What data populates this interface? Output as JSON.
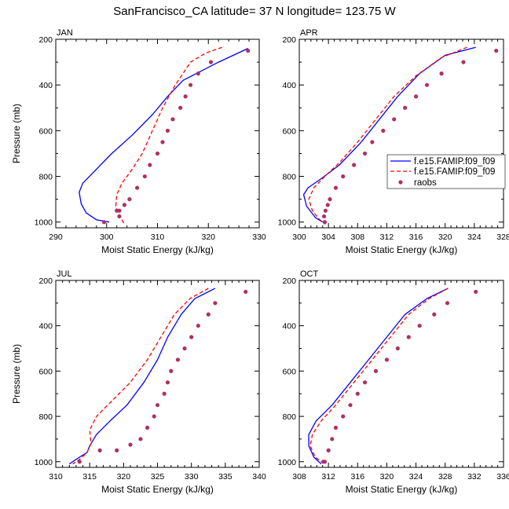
{
  "title": "SanFrancisco_CA  latitude= 37 N longitude= 123.75 W",
  "colors": {
    "blue": "#0000ff",
    "red": "#ff0000",
    "dots": "#b03060"
  },
  "legend": {
    "placement": "right of APR panel",
    "entries": [
      "f.e15.FAMIP.f09_f09",
      "f.e15.FAMIP.f09_f09",
      "raobs"
    ]
  },
  "chart_data": [
    {
      "type": "line",
      "month": "JAN",
      "xlabel": "Moist Static Energy (kJ/kg)",
      "ylabel": "Pressure (mb)",
      "xlim": [
        290,
        330
      ],
      "ylim": [
        200,
        1025
      ],
      "y_inverted": true,
      "xticks": [
        290,
        300,
        310,
        320,
        330
      ],
      "yticks": [
        200,
        400,
        600,
        800,
        1000
      ],
      "series": [
        {
          "name": "f.e15.FAMIP.f09_f09",
          "style": "solid-blue",
          "x": [
            327.8,
            322,
            315,
            312,
            309,
            305,
            301,
            297.5,
            295.3,
            294.6,
            295,
            296,
            298,
            300.5
          ],
          "y": [
            240,
            300,
            380,
            450,
            530,
            620,
            700,
            780,
            830,
            870,
            920,
            960,
            990,
            1000
          ]
        },
        {
          "name": "f.e15.FAMIP.f09_f09",
          "style": "dashed-red",
          "x": [
            322.7,
            319.5,
            316.5,
            313.5,
            311,
            309,
            307,
            305,
            303,
            302,
            301.8,
            302.2,
            303,
            303.5
          ],
          "y": [
            235,
            260,
            300,
            400,
            500,
            600,
            700,
            770,
            830,
            880,
            930,
            960,
            990,
            1010
          ]
        },
        {
          "name": "raobs",
          "style": "dots",
          "x": [
            327.8,
            320.5,
            318,
            316.5,
            315.5,
            314.5,
            313,
            312,
            311,
            310,
            308.5,
            307.5,
            306,
            304.5,
            303.5,
            302.5,
            302,
            302.5,
            299.5
          ],
          "y": [
            250,
            300,
            350,
            400,
            450,
            500,
            550,
            600,
            650,
            700,
            750,
            800,
            850,
            900,
            925,
            950,
            950,
            975,
            1000
          ]
        }
      ]
    },
    {
      "type": "line",
      "month": "APR",
      "xlabel": "Moist Static Energy (kJ/kg)",
      "ylabel": "",
      "xlim": [
        300,
        328
      ],
      "ylim": [
        200,
        1025
      ],
      "y_inverted": true,
      "xticks": [
        300,
        304,
        308,
        312,
        316,
        320,
        324,
        328
      ],
      "yticks": [
        200,
        400,
        600,
        800,
        1000
      ],
      "series": [
        {
          "name": "f.e15.FAMIP.f09_f09",
          "style": "solid-blue",
          "x": [
            324.2,
            320,
            316.5,
            313.5,
            311,
            308.5,
            305.5,
            303,
            301.2,
            300.6,
            301,
            302.2,
            303.2
          ],
          "y": [
            235,
            270,
            350,
            450,
            550,
            650,
            750,
            810,
            850,
            880,
            930,
            980,
            1000
          ]
        },
        {
          "name": "f.e15.FAMIP.f09_f09",
          "style": "dashed-red",
          "x": [
            323,
            319.5,
            316,
            313,
            310.5,
            308,
            305.5,
            303.5,
            302,
            301.3,
            301.8,
            302.8,
            303.6
          ],
          "y": [
            235,
            280,
            360,
            450,
            550,
            650,
            740,
            800,
            850,
            900,
            950,
            990,
            1010
          ]
        },
        {
          "name": "raobs",
          "style": "dots",
          "x": [
            327,
            322.5,
            319.5,
            317.5,
            316,
            314.5,
            313,
            311.5,
            310,
            309,
            307.5,
            306,
            305,
            304.2,
            303.9,
            303.6,
            303.4,
            303.5
          ],
          "y": [
            250,
            300,
            350,
            400,
            450,
            500,
            550,
            600,
            650,
            700,
            750,
            800,
            850,
            900,
            925,
            950,
            975,
            1000
          ]
        }
      ]
    },
    {
      "type": "line",
      "month": "JUL",
      "xlabel": "Moist Static Energy (kJ/kg)",
      "ylabel": "Pressure (mb)",
      "xlim": [
        310,
        340
      ],
      "ylim": [
        200,
        1025
      ],
      "y_inverted": true,
      "xticks": [
        310,
        315,
        320,
        325,
        330,
        335,
        340
      ],
      "yticks": [
        200,
        400,
        600,
        800,
        1000
      ],
      "series": [
        {
          "name": "f.e15.FAMIP.f09_f09",
          "style": "solid-blue",
          "x": [
            333.5,
            330.5,
            328.5,
            326.5,
            325,
            323,
            320.5,
            318,
            316,
            315,
            314.6,
            313.5,
            312
          ],
          "y": [
            235,
            280,
            350,
            450,
            550,
            650,
            750,
            820,
            880,
            930,
            960,
            980,
            1010
          ]
        },
        {
          "name": "f.e15.FAMIP.f09_f09",
          "style": "dashed-red",
          "x": [
            332.5,
            329.8,
            327.5,
            325.5,
            323.5,
            321,
            318,
            316,
            315,
            315.2,
            314.6,
            313.5,
            312.5
          ],
          "y": [
            235,
            280,
            350,
            450,
            550,
            650,
            740,
            800,
            860,
            920,
            960,
            990,
            1010
          ]
        },
        {
          "name": "raobs",
          "style": "dots",
          "x": [
            338,
            333.5,
            332.5,
            331,
            330,
            329,
            328,
            327,
            326.5,
            326,
            325,
            324.5,
            323.5,
            322.5,
            321,
            319,
            316.5,
            313.5
          ],
          "y": [
            250,
            300,
            350,
            400,
            450,
            500,
            550,
            600,
            650,
            700,
            750,
            800,
            850,
            900,
            925,
            950,
            950,
            1000
          ]
        }
      ]
    },
    {
      "type": "line",
      "month": "OCT",
      "xlabel": "Moist Static Energy (kJ/kg)",
      "ylabel": "",
      "xlim": [
        308,
        336
      ],
      "ylim": [
        200,
        1025
      ],
      "y_inverted": true,
      "xticks": [
        308,
        312,
        316,
        320,
        324,
        328,
        332,
        336
      ],
      "yticks": [
        200,
        400,
        600,
        800,
        1000
      ],
      "series": [
        {
          "name": "f.e15.FAMIP.f09_f09",
          "style": "solid-blue",
          "x": [
            328.4,
            325.5,
            322.5,
            320,
            317.5,
            315,
            312.5,
            310.3,
            309.3,
            309.3,
            310,
            311
          ],
          "y": [
            235,
            280,
            350,
            450,
            550,
            650,
            750,
            820,
            880,
            930,
            980,
            1010
          ]
        },
        {
          "name": "f.e15.FAMIP.f09_f09",
          "style": "dashed-red",
          "x": [
            328.4,
            325.8,
            323,
            320.5,
            318,
            315.5,
            313,
            311,
            309.8,
            309.5,
            310.2,
            311.2
          ],
          "y": [
            235,
            280,
            350,
            450,
            550,
            650,
            750,
            820,
            880,
            930,
            980,
            1005
          ]
        },
        {
          "name": "raobs",
          "style": "dots",
          "x": [
            332.2,
            328.3,
            326.5,
            324.5,
            323,
            321.5,
            320,
            318.5,
            317,
            316,
            315,
            314,
            313,
            312.5,
            312,
            311.5,
            311.3
          ],
          "y": [
            250,
            300,
            350,
            400,
            450,
            500,
            550,
            600,
            650,
            700,
            750,
            800,
            850,
            900,
            950,
            1000,
            1000
          ]
        }
      ]
    }
  ]
}
